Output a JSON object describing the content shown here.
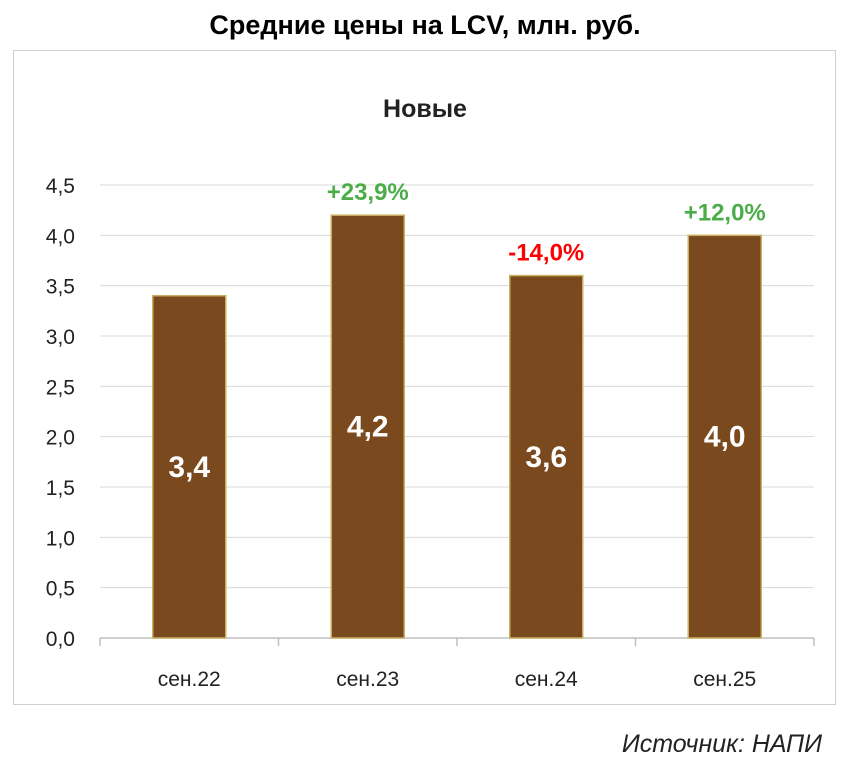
{
  "page": {
    "title": "Средние цены на LCV, млн. руб.",
    "source": "Источник: НАПИ"
  },
  "colors": {
    "bar": "#7a4a1e",
    "bar_border": "#c9b060",
    "positive": "#4cad48",
    "negative": "#ff0000",
    "grid": "#d9d9d9"
  },
  "chart_data": {
    "type": "bar",
    "title": "Новые",
    "categories": [
      "сен.22",
      "сен.23",
      "сен.24",
      "сен.25"
    ],
    "values": [
      3.4,
      4.2,
      3.6,
      4.0
    ],
    "value_labels": [
      "3,4",
      "4,2",
      "3,6",
      "4,0"
    ],
    "change_labels": [
      "",
      "+23,9%",
      "-14,0%",
      "+12,0%"
    ],
    "change_signs": [
      0,
      1,
      -1,
      1
    ],
    "ylim": [
      0,
      4.5
    ],
    "yticks": [
      "0,0",
      "0,5",
      "1,0",
      "1,5",
      "2,0",
      "2,5",
      "3,0",
      "3,5",
      "4,0",
      "4,5"
    ],
    "ytick_values": [
      0,
      0.5,
      1.0,
      1.5,
      2.0,
      2.5,
      3.0,
      3.5,
      4.0,
      4.5
    ],
    "grid": true,
    "legend": false
  }
}
